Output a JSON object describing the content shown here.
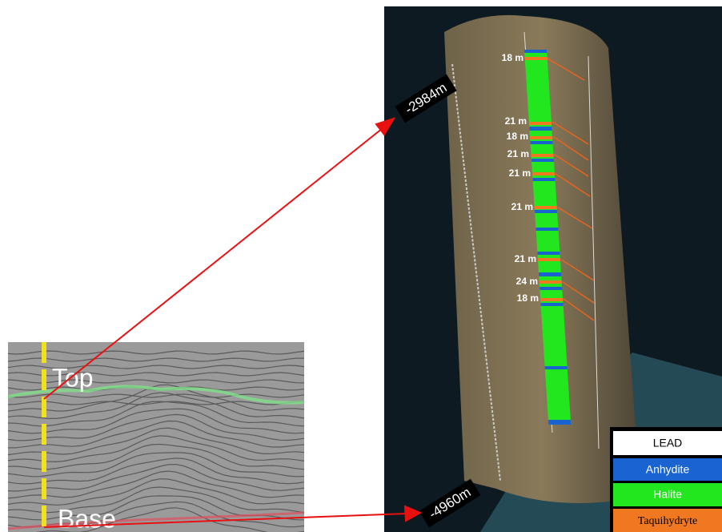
{
  "seismic": {
    "top_label": "Top",
    "base_label": "Base"
  },
  "well": {
    "top_depth": "-2984m",
    "base_depth": "-4960m",
    "thickness_labels": [
      "18 m",
      "21 m",
      "18 m",
      "21 m",
      "21 m",
      "21 m",
      "21 m",
      "24 m",
      "18 m"
    ]
  },
  "legend": [
    "LEAD",
    "Anhydite",
    "Halite",
    "Taquihydryte"
  ]
}
